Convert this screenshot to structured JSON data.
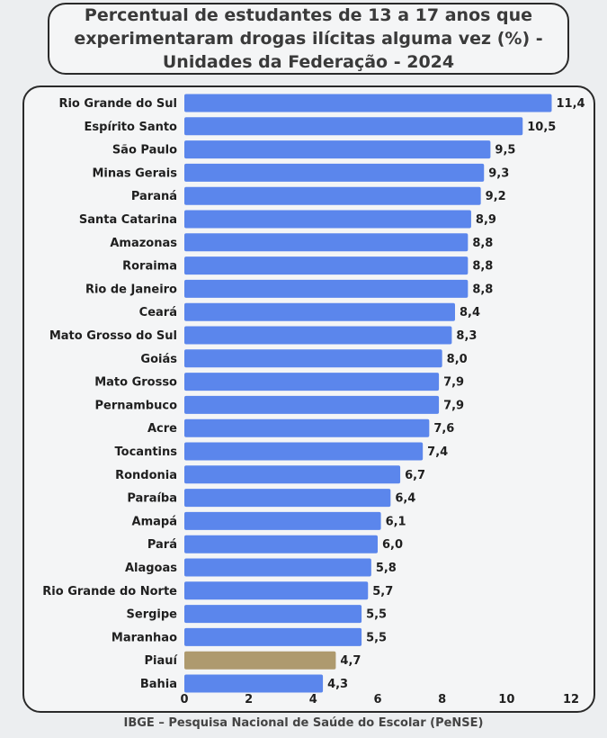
{
  "title": "Percentual de estudantes de 13 a 17 anos que\nexperimentaram drogas ilícitas alguma vez (%) -\nUnidades da Federação - 2024",
  "source": "IBGE – Pesquisa Nacional de Saúde do Escolar (PeNSE)",
  "colors": {
    "bar": "#5b86ec",
    "highlight": "#ae9a6e",
    "text": "#1f1f1f"
  },
  "chart_data": {
    "type": "bar",
    "orientation": "horizontal",
    "title": "Percentual de estudantes de 13 a 17 anos que experimentaram drogas ilícitas alguma vez (%) - Unidades da Federação - 2024",
    "xlabel": "",
    "ylabel": "",
    "xlim": [
      0,
      12
    ],
    "xticks": [
      0,
      2,
      4,
      6,
      8,
      10,
      12
    ],
    "grid": false,
    "categories": [
      "Rio Grande do Sul",
      "Espírito Santo",
      "São Paulo",
      "Minas Gerais",
      "Paraná",
      "Santa Catarina",
      "Amazonas",
      "Roraima",
      "Rio de Janeiro",
      "Ceará",
      "Mato Grosso do Sul",
      "Goiás",
      "Mato Grosso",
      "Pernambuco",
      "Acre",
      "Tocantins",
      "Rondonia",
      "Paraíba",
      "Amapá",
      "Pará",
      "Alagoas",
      "Rio Grande do Norte",
      "Sergipe",
      "Maranhao",
      "Piauí",
      "Bahia"
    ],
    "values": [
      11.4,
      10.5,
      9.5,
      9.3,
      9.2,
      8.9,
      8.8,
      8.8,
      8.8,
      8.4,
      8.3,
      8.0,
      7.9,
      7.9,
      7.6,
      7.4,
      6.7,
      6.4,
      6.1,
      6.0,
      5.8,
      5.7,
      5.5,
      5.5,
      4.7,
      4.3
    ],
    "value_labels": [
      "11,4",
      "10,5",
      "9,5",
      "9,3",
      "9,2",
      "8,9",
      "8,8",
      "8,8",
      "8,8",
      "8,4",
      "8,3",
      "8,0",
      "7,9",
      "7,9",
      "7,6",
      "7,4",
      "6,7",
      "6,4",
      "6,1",
      "6,0",
      "5,8",
      "5,7",
      "5,5",
      "5,5",
      "4,7",
      "4,3"
    ],
    "highlight": "Piauí"
  }
}
